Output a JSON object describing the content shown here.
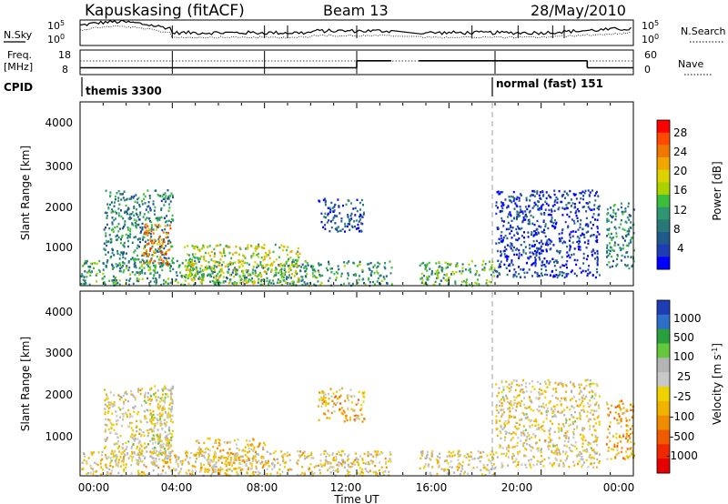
{
  "header": {
    "station": "Kapuskasing (fitACF)",
    "beam": "Beam 13",
    "date": "28/May/2010"
  },
  "noise_panel": {
    "left_label": "N.Sky",
    "right_label": "N.Search",
    "ticks": [
      "10^5",
      "10^0"
    ]
  },
  "freq_panel": {
    "left_label_1": "Freq.",
    "left_label_2": "[MHz]",
    "left_ticks": [
      "18",
      "8"
    ],
    "right_label": "Nave",
    "right_ticks": [
      "60",
      "0"
    ]
  },
  "cpid": {
    "label": "CPID",
    "programs": [
      {
        "name": "themis 3300"
      },
      {
        "name": "normal (fast) 151"
      }
    ]
  },
  "x_axis": {
    "title": "Time UT",
    "ticks": [
      "00:00",
      "04:00",
      "08:00",
      "12:00",
      "16:00",
      "20:00",
      "00:00"
    ]
  },
  "y_axis": {
    "title": "Slant Range [km]",
    "ticks": [
      "4000",
      "3000",
      "2000",
      "1000"
    ]
  },
  "power_colorbar": {
    "title": "Power [dB]",
    "labels": [
      "28",
      "24",
      "20",
      "16",
      "12",
      "8",
      "4"
    ],
    "colors": [
      "#ff0000",
      "#ff4a00",
      "#f07800",
      "#f0a800",
      "#dcd200",
      "#a8d200",
      "#3cbe3c",
      "#2e9670",
      "#287878",
      "#1e5a8c",
      "#1e3cb4",
      "#0000ff"
    ]
  },
  "velocity_colorbar": {
    "title": "Velocity [m s^-1]",
    "labels": [
      "1000",
      "500",
      "100",
      "25",
      "-25",
      "-100",
      "-500",
      "-1000"
    ],
    "colors": [
      "#1e3cb4",
      "#2d6ec8",
      "#28a03c",
      "#64c83c",
      "#b4b4b4",
      "#c8c8c8",
      "#f0d200",
      "#f0b400",
      "#f08c00",
      "#f05a00",
      "#f02800",
      "#e60000"
    ]
  },
  "chart_data": {
    "type": "heatmap",
    "title": "Kapuskasing (fitACF) Beam 13 28/May/2010",
    "xlabel": "Time UT",
    "ylabel": "Slant Range [km]",
    "x_range_hours": [
      0,
      24
    ],
    "y_range_km": [
      180,
      4600
    ],
    "data_gap_hours": [
      13.5,
      14.7
    ],
    "cpid_change_hour": 18,
    "frequency_mhz": [
      {
        "from": 0,
        "to": 12,
        "value": 10.5
      },
      {
        "from": 12,
        "to": 13.5,
        "value": 14
      },
      {
        "from": 14.7,
        "to": 22,
        "value": 14
      },
      {
        "from": 22,
        "to": 24,
        "value": 10.5
      }
    ],
    "panels": [
      {
        "name": "Power",
        "unit": "dB",
        "scale": [
          0,
          32
        ],
        "echo_regions": [
          {
            "t_start": 0.0,
            "t_end": 13.5,
            "r_min": 200,
            "r_max": 800,
            "level": 12
          },
          {
            "t_start": 1.0,
            "t_end": 4.0,
            "r_min": 600,
            "r_max": 2500,
            "level": 10
          },
          {
            "t_start": 2.7,
            "t_end": 3.9,
            "r_min": 700,
            "r_max": 1700,
            "level": 24
          },
          {
            "t_start": 4.5,
            "t_end": 9.5,
            "r_min": 250,
            "r_max": 1200,
            "level": 18
          },
          {
            "t_start": 10.3,
            "t_end": 12.3,
            "r_min": 1500,
            "r_max": 2300,
            "level": 6
          },
          {
            "t_start": 14.7,
            "t_end": 18.0,
            "r_min": 200,
            "r_max": 800,
            "level": 14
          },
          {
            "t_start": 18.0,
            "t_end": 22.5,
            "r_min": 400,
            "r_max": 2500,
            "level": 4
          },
          {
            "t_start": 22.8,
            "t_end": 24.0,
            "r_min": 600,
            "r_max": 2200,
            "level": 10
          }
        ]
      },
      {
        "name": "Velocity",
        "unit": "m s^-1",
        "scale": [
          -1000,
          1000
        ],
        "echo_regions": [
          {
            "t_start": 0.0,
            "t_end": 13.5,
            "r_min": 200,
            "r_max": 800,
            "level": -50
          },
          {
            "t_start": 1.0,
            "t_end": 4.0,
            "r_min": 500,
            "r_max": 2300,
            "level": 10
          },
          {
            "t_start": 3.0,
            "t_end": 4.0,
            "r_min": 600,
            "r_max": 2400,
            "level": 100
          },
          {
            "t_start": 5.0,
            "t_end": 8.0,
            "r_min": 250,
            "r_max": 1100,
            "level": -150
          },
          {
            "t_start": 10.3,
            "t_end": 12.3,
            "r_min": 1500,
            "r_max": 2300,
            "level": -200
          },
          {
            "t_start": 14.7,
            "t_end": 18.0,
            "r_min": 200,
            "r_max": 800,
            "level": -30
          },
          {
            "t_start": 18.0,
            "t_end": 22.5,
            "r_min": 400,
            "r_max": 2500,
            "level": 0
          },
          {
            "t_start": 22.8,
            "t_end": 24.0,
            "r_min": 600,
            "r_max": 2000,
            "level": -300
          }
        ]
      }
    ]
  }
}
